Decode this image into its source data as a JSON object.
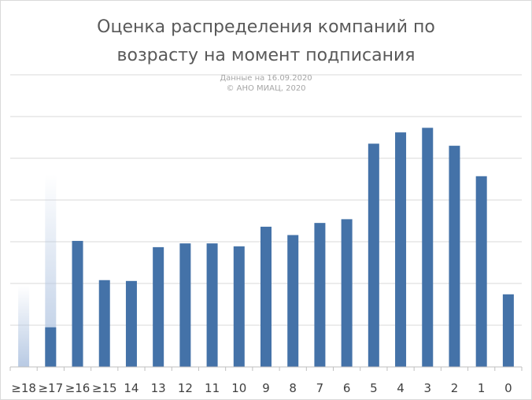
{
  "chart_data": {
    "type": "bar",
    "title_lines": [
      "Оценка распределения компаний по",
      "возрасту на момент подписания"
    ],
    "notes": [
      "Данные на 16.09.2020",
      "© АНО МИАЦ, 2020"
    ],
    "categories": [
      "≥18",
      "≥17",
      "≥16",
      "≥15",
      "14",
      "13",
      "12",
      "11",
      "10",
      "9",
      "8",
      "7",
      "6",
      "5",
      "4",
      "3",
      "2",
      "1",
      "0"
    ],
    "values": [
      0,
      9.5,
      30.2,
      20.8,
      20.6,
      28.7,
      29.6,
      29.6,
      28.9,
      33.6,
      31.6,
      34.5,
      35.4,
      53.5,
      56.2,
      57.3,
      53.0,
      45.7,
      17.4
    ],
    "ylim": [
      0,
      70
    ],
    "grid": true,
    "colors": {
      "bar": "#4472a8",
      "grid": "#d9d9d9",
      "axis": "#bfbfbf",
      "fade_bar": "#b4c7e2"
    },
    "overlay_bars": [
      {
        "category": "≥18",
        "value": 19.5
      },
      {
        "category": "≥17",
        "value": 46.2
      },
      {
        "category": "≥16",
        "value": 18.0
      }
    ]
  }
}
